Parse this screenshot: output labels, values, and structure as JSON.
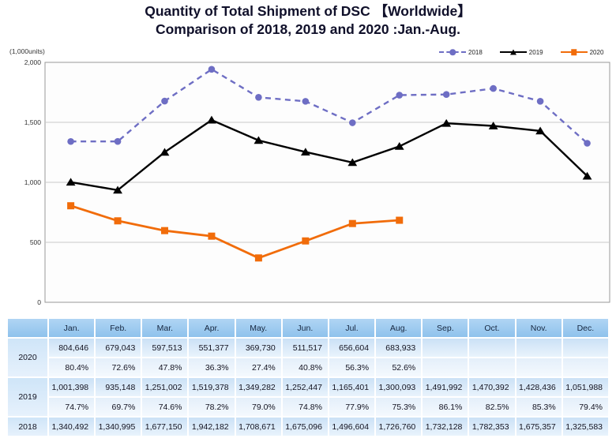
{
  "title": {
    "line1": "Quantity of Total Shipment of DSC 【Worldwide】",
    "line2": "Comparison of 2018, 2019 and 2020 :Jan.-Aug."
  },
  "chart": {
    "units_label": "(1,000units)",
    "yticks": [
      "2,000",
      "1,500",
      "1,000",
      "500",
      "0"
    ]
  },
  "chart_data": {
    "type": "line",
    "title": "Quantity of Total Shipment of DSC 【Worldwide】 Comparison of 2018, 2019 and 2020 :Jan.-Aug.",
    "categories": [
      "Jan.",
      "Feb.",
      "Mar.",
      "Apr.",
      "May.",
      "Jun.",
      "Jul.",
      "Aug.",
      "Sep.",
      "Oct.",
      "Nov.",
      "Dec."
    ],
    "ylabel": "(1,000units)",
    "ylim": [
      0,
      2000
    ],
    "grid": true,
    "legend_position": "top-right",
    "series": [
      {
        "name": "2018",
        "color": "#6e6ec4",
        "marker": "circle",
        "dash": true,
        "width": 2.4,
        "values": [
          1340.5,
          1341.0,
          1677.2,
          1942.2,
          1708.7,
          1675.1,
          1496.6,
          1726.8,
          1732.1,
          1782.4,
          1675.4,
          1325.6
        ]
      },
      {
        "name": "2019",
        "color": "#000000",
        "marker": "triangle",
        "dash": false,
        "width": 2.4,
        "values": [
          1001.4,
          935.1,
          1251.0,
          1519.4,
          1349.3,
          1252.4,
          1165.4,
          1300.1,
          1492.0,
          1470.4,
          1428.4,
          1052.0
        ]
      },
      {
        "name": "2020",
        "color": "#f16c0a",
        "marker": "square",
        "dash": false,
        "width": 2.8,
        "values": [
          804.6,
          679.0,
          597.5,
          551.4,
          369.7,
          511.5,
          656.6,
          683.9
        ]
      }
    ]
  },
  "table": {
    "columns": [
      "Jan.",
      "Feb.",
      "Mar.",
      "Apr.",
      "May.",
      "Jun.",
      "Jul.",
      "Aug.",
      "Sep.",
      "Oct.",
      "Nov.",
      "Dec."
    ],
    "rows": [
      {
        "year": "2020",
        "values": [
          "804,646",
          "679,043",
          "597,513",
          "551,377",
          "369,730",
          "511,517",
          "656,604",
          "683,933",
          "",
          "",
          "",
          ""
        ],
        "pcts": [
          "80.4%",
          "72.6%",
          "47.8%",
          "36.3%",
          "27.4%",
          "40.8%",
          "56.3%",
          "52.6%",
          "",
          "",
          "",
          ""
        ]
      },
      {
        "year": "2019",
        "values": [
          "1,001,398",
          "935,148",
          "1,251,002",
          "1,519,378",
          "1,349,282",
          "1,252,447",
          "1,165,401",
          "1,300,093",
          "1,491,992",
          "1,470,392",
          "1,428,436",
          "1,051,988"
        ],
        "pcts": [
          "74.7%",
          "69.7%",
          "74.6%",
          "78.2%",
          "79.0%",
          "74.8%",
          "77.9%",
          "75.3%",
          "86.1%",
          "82.5%",
          "85.3%",
          "79.4%"
        ]
      },
      {
        "year": "2018",
        "values": [
          "1,340,492",
          "1,340,995",
          "1,677,150",
          "1,942,182",
          "1,708,671",
          "1,675,096",
          "1,496,604",
          "1,726,760",
          "1,732,128",
          "1,782,353",
          "1,675,357",
          "1,325,583"
        ]
      }
    ]
  }
}
